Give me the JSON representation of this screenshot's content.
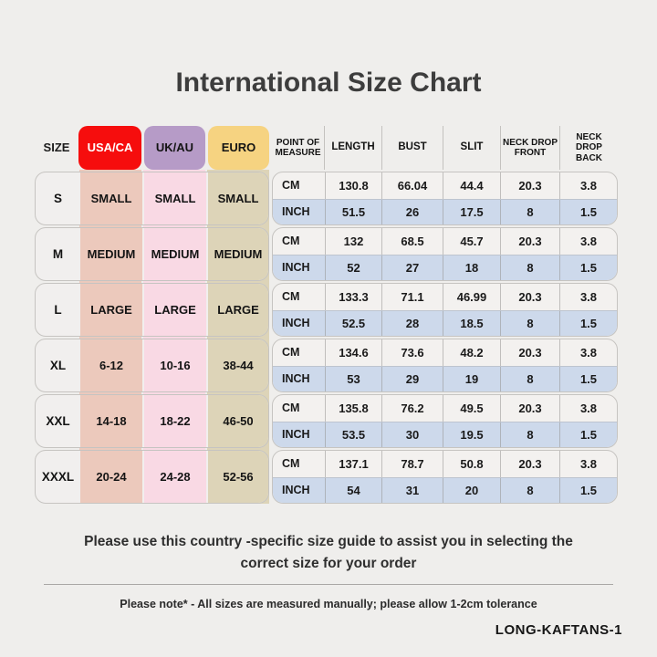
{
  "title": "International Size Chart",
  "colors": {
    "background": "#efeeec",
    "usa_ca_header": "#f60d0d",
    "uk_au_header": "#b69bc7",
    "euro_header": "#f6d381",
    "usa_ca_column": "#ecc9bc",
    "uk_au_column": "#f9d9e4",
    "euro_column": "#ddd4b8",
    "cm_row": "#f3f1ef",
    "inch_row": "#cdd9eb"
  },
  "headers": {
    "size": "SIZE",
    "usa_ca": "USA/CA",
    "uk_au": "UK/AU",
    "euro": "EURO",
    "measures": [
      "POINT OF MEASURE",
      "LENGTH",
      "BUST",
      "SLIT",
      "NECK DROP FRONT",
      "NECK DROP BACK"
    ]
  },
  "rows": [
    {
      "size": "S",
      "usa_ca": "SMALL",
      "uk_au": "SMALL",
      "euro": "SMALL",
      "cm": {
        "label": "CM",
        "length": "130.8",
        "bust": "66.04",
        "slit": "44.4",
        "neck_drop_front": "20.3",
        "neck_drop_back": "3.8"
      },
      "inch": {
        "label": "INCH",
        "length": "51.5",
        "bust": "26",
        "slit": "17.5",
        "neck_drop_front": "8",
        "neck_drop_back": "1.5"
      }
    },
    {
      "size": "M",
      "usa_ca": "MEDIUM",
      "uk_au": "MEDIUM",
      "euro": "MEDIUM",
      "cm": {
        "label": "CM",
        "length": "132",
        "bust": "68.5",
        "slit": "45.7",
        "neck_drop_front": "20.3",
        "neck_drop_back": "3.8"
      },
      "inch": {
        "label": "INCH",
        "length": "52",
        "bust": "27",
        "slit": "18",
        "neck_drop_front": "8",
        "neck_drop_back": "1.5"
      }
    },
    {
      "size": "L",
      "usa_ca": "LARGE",
      "uk_au": "LARGE",
      "euro": "LARGE",
      "cm": {
        "label": "CM",
        "length": "133.3",
        "bust": "71.1",
        "slit": "46.99",
        "neck_drop_front": "20.3",
        "neck_drop_back": "3.8"
      },
      "inch": {
        "label": "INCH",
        "length": "52.5",
        "bust": "28",
        "slit": "18.5",
        "neck_drop_front": "8",
        "neck_drop_back": "1.5"
      }
    },
    {
      "size": "XL",
      "usa_ca": "6-12",
      "uk_au": "10-16",
      "euro": "38-44",
      "cm": {
        "label": "CM",
        "length": "134.6",
        "bust": "73.6",
        "slit": "48.2",
        "neck_drop_front": "20.3",
        "neck_drop_back": "3.8"
      },
      "inch": {
        "label": "INCH",
        "length": "53",
        "bust": "29",
        "slit": "19",
        "neck_drop_front": "8",
        "neck_drop_back": "1.5"
      }
    },
    {
      "size": "XXL",
      "usa_ca": "14-18",
      "uk_au": "18-22",
      "euro": "46-50",
      "cm": {
        "label": "CM",
        "length": "135.8",
        "bust": "76.2",
        "slit": "49.5",
        "neck_drop_front": "20.3",
        "neck_drop_back": "3.8"
      },
      "inch": {
        "label": "INCH",
        "length": "53.5",
        "bust": "30",
        "slit": "19.5",
        "neck_drop_front": "8",
        "neck_drop_back": "1.5"
      }
    },
    {
      "size": "XXXL",
      "usa_ca": "20-24",
      "uk_au": "24-28",
      "euro": "52-56",
      "cm": {
        "label": "CM",
        "length": "137.1",
        "bust": "78.7",
        "slit": "50.8",
        "neck_drop_front": "20.3",
        "neck_drop_back": "3.8"
      },
      "inch": {
        "label": "INCH",
        "length": "54",
        "bust": "31",
        "slit": "20",
        "neck_drop_front": "8",
        "neck_drop_back": "1.5"
      }
    }
  ],
  "footer": {
    "guide_text": "Please use this country -specific size guide to assist you in selecting the correct size for your order",
    "note_text": "Please note* - All sizes are measured manually; please allow 1-2cm tolerance",
    "sku": "LONG-KAFTANS-1"
  }
}
